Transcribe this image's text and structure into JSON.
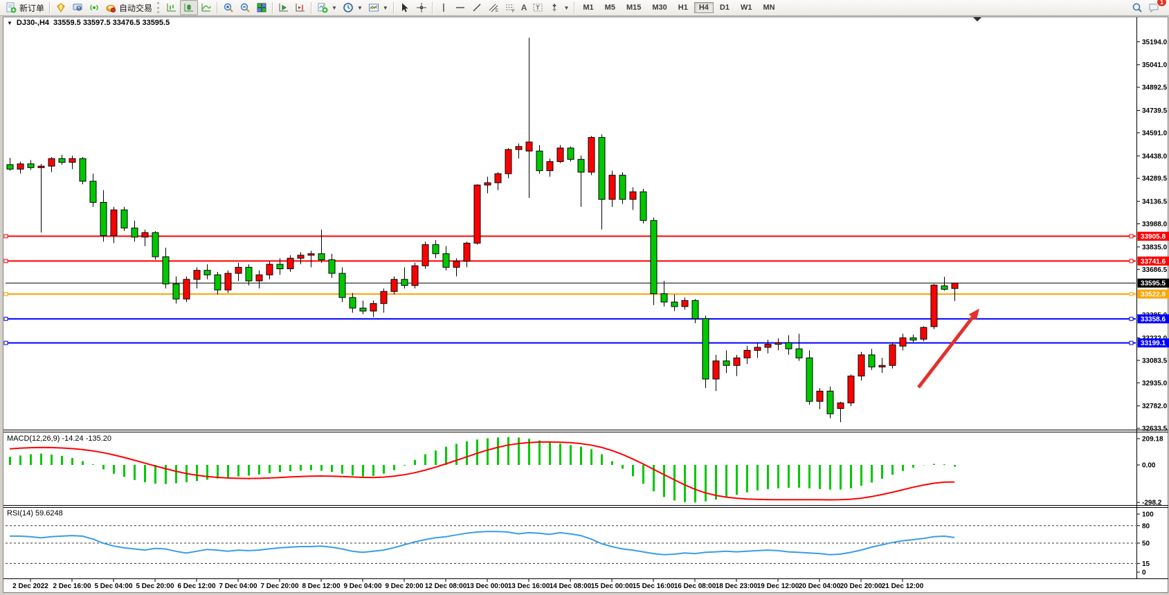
{
  "toolbar": {
    "new_order_label": "新订单",
    "autotrade_label": "自动交易",
    "timeframes": [
      "M1",
      "M5",
      "M15",
      "M30",
      "H1",
      "H4",
      "D1",
      "W1",
      "MN"
    ],
    "active_timeframe": "H4",
    "notification_count": "1"
  },
  "header": {
    "symbol_title": "DJ30-,H4",
    "ohlc": "33559.5 33597.5 33476.5 33595.5",
    "collapse_marker": "▼"
  },
  "panes": {
    "macd_label": "MACD(12,26,9) -14.24 -135.20",
    "rsi_label": "RSI(14) 59.6248"
  },
  "chart_data": {
    "type": "candlestick",
    "symbol": "DJ30-",
    "timeframe": "H4",
    "colors": {
      "bull": "#ff0000",
      "bear": "#00c800",
      "wick": "#000000",
      "signal": "#ff0000",
      "hist": "#00c800",
      "rsi": "#3a9ce8",
      "arrow": "#e5312b"
    },
    "price_axis_ticks": [
      35194.0,
      35041.0,
      34892.5,
      34739.5,
      34591.0,
      34438.0,
      34289.5,
      34136.5,
      33988.0,
      33835.0,
      33686.5,
      33385.0,
      33232.0,
      33083.5,
      32935.0,
      32782.0,
      32633.5
    ],
    "time_labels": [
      "2 Dec 2022",
      "2 Dec 16:00",
      "5 Dec 04:00",
      "5 Dec 20:00",
      "6 Dec 12:00",
      "7 Dec 04:00",
      "7 Dec 20:00",
      "8 Dec 12:00",
      "9 Dec 04:00",
      "9 Dec 20:00",
      "12 Dec 08:00",
      "13 Dec 00:00",
      "13 Dec 16:00",
      "14 Dec 08:00",
      "15 Dec 00:00",
      "15 Dec 16:00",
      "16 Dec 08:00",
      "18 Dec 23:00",
      "19 Dec 12:00",
      "20 Dec 04:00",
      "20 Dec 20:00",
      "21 Dec 12:00"
    ],
    "levels": [
      {
        "price": 33905.8,
        "color": "#ff0000",
        "current": false
      },
      {
        "price": 33741.6,
        "color": "#ff0000",
        "current": false
      },
      {
        "price": 33595.5,
        "color": "#000000",
        "current": true
      },
      {
        "price": 33522.8,
        "color": "#ffa500",
        "current": false
      },
      {
        "price": 33358.6,
        "color": "#0000ff",
        "current": false
      },
      {
        "price": 33199.1,
        "color": "#0000ff",
        "current": false
      }
    ],
    "candles": [
      [
        34380,
        34425,
        34340,
        34350
      ],
      [
        34350,
        34400,
        34320,
        34385
      ],
      [
        34385,
        34410,
        34345,
        34360
      ],
      [
        34360,
        34385,
        33930,
        34370
      ],
      [
        34370,
        34430,
        34330,
        34420
      ],
      [
        34420,
        34445,
        34380,
        34395
      ],
      [
        34395,
        34440,
        34350,
        34420
      ],
      [
        34420,
        34430,
        34250,
        34270
      ],
      [
        34270,
        34320,
        34100,
        34130
      ],
      [
        34130,
        34210,
        33870,
        33910
      ],
      [
        33910,
        34100,
        33860,
        34080
      ],
      [
        34080,
        34100,
        33940,
        33960
      ],
      [
        33960,
        34010,
        33870,
        33900
      ],
      [
        33900,
        33950,
        33840,
        33930
      ],
      [
        33930,
        33940,
        33750,
        33770
      ],
      [
        33770,
        33830,
        33560,
        33590
      ],
      [
        33590,
        33640,
        33460,
        33490
      ],
      [
        33490,
        33640,
        33470,
        33620
      ],
      [
        33620,
        33700,
        33560,
        33680
      ],
      [
        33680,
        33720,
        33620,
        33650
      ],
      [
        33650,
        33670,
        33520,
        33550
      ],
      [
        33550,
        33680,
        33530,
        33660
      ],
      [
        33660,
        33730,
        33610,
        33700
      ],
      [
        33700,
        33720,
        33580,
        33610
      ],
      [
        33610,
        33680,
        33560,
        33650
      ],
      [
        33650,
        33740,
        33620,
        33720
      ],
      [
        33720,
        33760,
        33650,
        33690
      ],
      [
        33690,
        33780,
        33670,
        33760
      ],
      [
        33760,
        33800,
        33720,
        33780
      ],
      [
        33780,
        33810,
        33700,
        33790
      ],
      [
        33790,
        33950,
        33730,
        33750
      ],
      [
        33750,
        33790,
        33630,
        33660
      ],
      [
        33660,
        33700,
        33470,
        33500
      ],
      [
        33500,
        33530,
        33400,
        33430
      ],
      [
        33430,
        33480,
        33390,
        33410
      ],
      [
        33410,
        33480,
        33370,
        33460
      ],
      [
        33460,
        33560,
        33400,
        33540
      ],
      [
        33540,
        33640,
        33520,
        33620
      ],
      [
        33620,
        33700,
        33560,
        33580
      ],
      [
        33580,
        33730,
        33560,
        33710
      ],
      [
        33710,
        33870,
        33690,
        33850
      ],
      [
        33850,
        33880,
        33760,
        33790
      ],
      [
        33790,
        33840,
        33680,
        33700
      ],
      [
        33700,
        33760,
        33640,
        33740
      ],
      [
        33740,
        33870,
        33700,
        33860
      ],
      [
        33860,
        34250,
        33850,
        34245
      ],
      [
        34245,
        34300,
        34190,
        34260
      ],
      [
        34260,
        34330,
        34210,
        34320
      ],
      [
        34320,
        34490,
        34290,
        34480
      ],
      [
        34480,
        34520,
        34420,
        34500
      ],
      [
        34470,
        35220,
        34160,
        34530
      ],
      [
        34470,
        34510,
        34320,
        34340
      ],
      [
        34340,
        34420,
        34300,
        34400
      ],
      [
        34400,
        34510,
        34390,
        34490
      ],
      [
        34490,
        34500,
        34400,
        34415
      ],
      [
        34415,
        34440,
        34100,
        34330
      ],
      [
        34330,
        34570,
        34310,
        34560
      ],
      [
        34560,
        34580,
        33950,
        34150
      ],
      [
        34150,
        34340,
        34100,
        34310
      ],
      [
        34310,
        34330,
        34120,
        34150
      ],
      [
        34150,
        34230,
        34080,
        34200
      ],
      [
        34200,
        34220,
        33990,
        34010
      ],
      [
        34010,
        34030,
        33450,
        33525
      ],
      [
        33525,
        33610,
        33440,
        33470
      ],
      [
        33470,
        33520,
        33410,
        33440
      ],
      [
        33440,
        33500,
        33420,
        33480
      ],
      [
        33480,
        33490,
        33330,
        33360
      ],
      [
        33360,
        33380,
        32900,
        32960
      ],
      [
        32960,
        33120,
        32880,
        33080
      ],
      [
        33080,
        33150,
        33000,
        33050
      ],
      [
        33050,
        33120,
        32980,
        33100
      ],
      [
        33100,
        33180,
        33060,
        33150
      ],
      [
        33150,
        33200,
        33100,
        33170
      ],
      [
        33170,
        33220,
        33130,
        33190
      ],
      [
        33190,
        33230,
        33150,
        33200
      ],
      [
        33200,
        33250,
        33120,
        33160
      ],
      [
        33160,
        33260,
        33080,
        33100
      ],
      [
        33100,
        33150,
        32790,
        32812
      ],
      [
        32812,
        32900,
        32760,
        32880
      ],
      [
        32880,
        32910,
        32700,
        32730
      ],
      [
        32765,
        32810,
        32674,
        32802
      ],
      [
        32802,
        32990,
        32780,
        32980
      ],
      [
        32980,
        33140,
        32950,
        33120
      ],
      [
        33120,
        33160,
        33020,
        33040
      ],
      [
        33040,
        33100,
        33000,
        33050
      ],
      [
        33050,
        33200,
        33030,
        33187
      ],
      [
        33178,
        33260,
        33150,
        33233
      ],
      [
        33233,
        33255,
        33205,
        33218
      ],
      [
        33224,
        33310,
        33210,
        33302
      ],
      [
        33307,
        33590,
        33290,
        33582
      ],
      [
        33577,
        33637,
        33545,
        33554
      ],
      [
        33559.5,
        33597.5,
        33476.5,
        33595.5
      ]
    ],
    "macd": {
      "tick_labels": [
        "209.18",
        "0.00",
        "-298.2"
      ],
      "tick_values": [
        209.18,
        0,
        -298.2
      ],
      "hist": [
        65,
        75,
        85,
        90,
        82,
        72,
        55,
        30,
        5,
        -35,
        -70,
        -95,
        -120,
        -138,
        -150,
        -152,
        -146,
        -138,
        -128,
        -118,
        -108,
        -100,
        -92,
        -85,
        -76,
        -66,
        -57,
        -50,
        -45,
        -42,
        -46,
        -56,
        -70,
        -84,
        -92,
        -88,
        -70,
        -42,
        -5,
        40,
        85,
        115,
        145,
        168,
        188,
        202,
        212,
        218,
        222,
        218,
        208,
        195,
        182,
        170,
        158,
        145,
        125,
        85,
        30,
        -30,
        -90,
        -150,
        -210,
        -255,
        -283,
        -296,
        -298,
        -290,
        -276,
        -258,
        -238,
        -218,
        -202,
        -192,
        -186,
        -182,
        -181,
        -186,
        -192,
        -196,
        -196,
        -186,
        -166,
        -140,
        -110,
        -78,
        -48,
        -22,
        -2,
        8,
        5,
        -14.24
      ],
      "signal": [
        128,
        133,
        137,
        139,
        138,
        135,
        130,
        122,
        112,
        98,
        80,
        60,
        38,
        15,
        -8,
        -30,
        -50,
        -68,
        -82,
        -92,
        -99,
        -104,
        -107,
        -108,
        -107,
        -104,
        -100,
        -96,
        -92,
        -89,
        -88,
        -89,
        -92,
        -96,
        -99,
        -100,
        -97,
        -90,
        -78,
        -62,
        -42,
        -18,
        8,
        36,
        64,
        92,
        118,
        140,
        158,
        170,
        178,
        182,
        183,
        181,
        177,
        170,
        158,
        140,
        115,
        84,
        48,
        8,
        -34,
        -76,
        -118,
        -158,
        -194,
        -222,
        -242,
        -256,
        -265,
        -271,
        -274,
        -276,
        -277,
        -277,
        -277,
        -277,
        -277,
        -278,
        -277,
        -273,
        -265,
        -252,
        -236,
        -218,
        -198,
        -178,
        -160,
        -146,
        -137,
        -135.2
      ]
    },
    "rsi": {
      "tick_labels": [
        "100",
        "80",
        "50",
        "15",
        "0"
      ],
      "tick_values": [
        100,
        80,
        50,
        15,
        0
      ],
      "dashed_levels": [
        80,
        50,
        15
      ],
      "values": [
        62,
        62,
        61,
        59,
        61,
        62,
        63,
        62,
        57,
        50,
        45,
        42,
        40,
        38,
        41,
        40,
        36,
        33,
        36,
        39,
        38,
        36,
        38,
        37,
        38,
        40,
        42,
        43,
        44,
        44,
        45,
        43,
        40,
        36,
        34,
        36,
        38,
        42,
        47,
        52,
        56,
        59,
        61,
        64,
        67,
        69,
        70,
        70,
        69,
        66,
        68,
        67,
        65,
        68,
        66,
        63,
        57,
        49,
        44,
        40,
        38,
        35,
        32,
        30,
        31,
        33,
        32,
        34,
        35,
        36,
        35,
        36,
        37,
        38,
        37,
        35,
        34,
        33,
        32,
        30,
        31,
        34,
        38,
        43,
        47,
        51,
        54,
        56,
        58,
        61,
        62,
        59.62
      ]
    },
    "annotation_arrow": {
      "from": [
        1327,
        560
      ],
      "to": [
        1415,
        446
      ]
    }
  }
}
